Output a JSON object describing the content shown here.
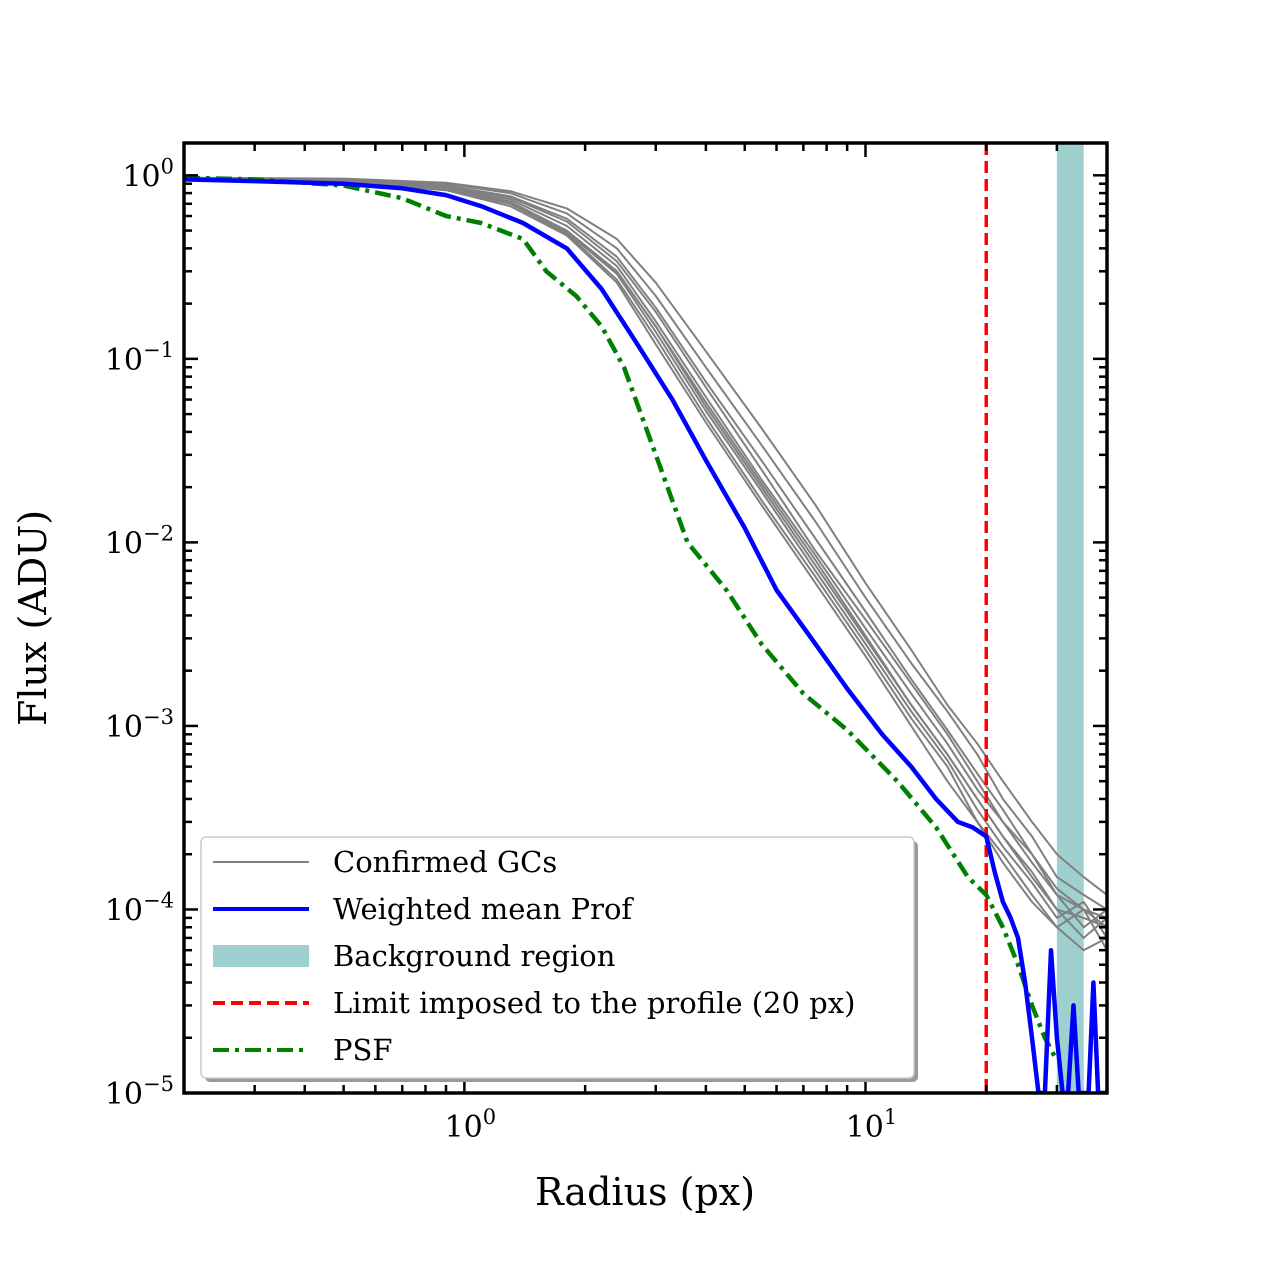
{
  "chart_data": {
    "type": "line",
    "title": "",
    "xlabel": "Radius (px)",
    "ylabel": "Flux (ADU)",
    "xscale": "log",
    "yscale": "log",
    "xlim": [
      0.2,
      40
    ],
    "ylim": [
      1e-05,
      1.5
    ],
    "x_ticks": [
      {
        "value": 1,
        "base": "10",
        "exp": "0"
      },
      {
        "value": 10,
        "base": "10",
        "exp": "1"
      }
    ],
    "y_ticks": [
      {
        "value": 1,
        "base": "10",
        "exp": "0"
      },
      {
        "value": 0.1,
        "base": "10",
        "exp": "−1"
      },
      {
        "value": 0.01,
        "base": "10",
        "exp": "−2"
      },
      {
        "value": 0.001,
        "base": "10",
        "exp": "−3"
      },
      {
        "value": 0.0001,
        "base": "10",
        "exp": "−4"
      },
      {
        "value": 1e-05,
        "base": "10",
        "exp": "−5"
      }
    ],
    "background_region": {
      "x_start": 30,
      "x_end": 35,
      "color": "#9fd0d0"
    },
    "limit_line": {
      "x": 20,
      "color": "#ff0000"
    },
    "series": [
      {
        "name": "Weighted mean Prof",
        "color": "#0000ff",
        "style": "solid",
        "width": 4.5,
        "x": [
          0.2,
          0.3,
          0.5,
          0.7,
          0.9,
          1.1,
          1.4,
          1.8,
          2.2,
          2.7,
          3.3,
          4.0,
          5.0,
          6.0,
          7.5,
          9.0,
          11.0,
          13.0,
          15.0,
          17.0,
          18.5,
          20.0,
          21.0,
          22.0,
          23.0,
          24.0,
          25.0,
          26.0,
          27.0,
          28.0,
          29.0,
          30.0,
          31.0,
          32.0,
          33.0,
          34.0,
          35.0,
          36.0,
          37.0,
          38.0,
          39.0,
          40.0
        ],
        "y": [
          0.95,
          0.93,
          0.9,
          0.85,
          0.78,
          0.68,
          0.55,
          0.4,
          0.24,
          0.12,
          0.06,
          0.028,
          0.012,
          0.0055,
          0.0028,
          0.0016,
          0.0009,
          0.0006,
          0.0004,
          0.0003,
          0.00028,
          0.00025,
          0.00016,
          0.00011,
          9e-05,
          7e-05,
          4e-05,
          2e-05,
          1e-05,
          1e-05,
          6e-05,
          2e-05,
          1e-05,
          1e-05,
          3e-05,
          1e-05,
          1e-05,
          1e-05,
          4e-05,
          1e-05,
          1e-05,
          1e-05
        ]
      },
      {
        "name": "PSF",
        "color": "#008000",
        "style": "dashdot",
        "width": 4.5,
        "x": [
          0.2,
          0.3,
          0.5,
          0.7,
          0.9,
          1.1,
          1.4,
          1.6,
          1.9,
          2.2,
          2.5,
          3.0,
          3.6,
          4.5,
          5.5,
          7.0,
          9.0,
          12.0,
          15.0,
          18.0,
          20.0,
          22.0,
          24.0,
          26.0,
          28.0,
          30.0
        ],
        "y": [
          0.97,
          0.95,
          0.88,
          0.75,
          0.6,
          0.55,
          0.45,
          0.3,
          0.22,
          0.15,
          0.09,
          0.03,
          0.01,
          0.0055,
          0.0028,
          0.0015,
          0.00095,
          0.0005,
          0.00028,
          0.00015,
          0.00012,
          8e-05,
          5e-05,
          3e-05,
          2e-05,
          1.5e-05
        ]
      },
      {
        "name": "Confirmed GCs",
        "color": "#808080",
        "style": "solid",
        "width": 2,
        "profiles": [
          {
            "x": [
              0.2,
              0.5,
              0.9,
              1.3,
              1.8,
              2.4,
              3.0,
              4.0,
              5.5,
              7.5,
              10,
              13,
              16,
              19,
              22,
              26,
              30,
              35,
              40
            ],
            "y": [
              0.96,
              0.94,
              0.88,
              0.76,
              0.56,
              0.34,
              0.18,
              0.07,
              0.025,
              0.009,
              0.0038,
              0.0017,
              0.0009,
              0.0005,
              0.0003,
              0.0002,
              0.00012,
              0.0001,
              8e-05
            ]
          },
          {
            "x": [
              0.2,
              0.5,
              0.9,
              1.3,
              1.8,
              2.4,
              3.0,
              4.0,
              5.5,
              7.5,
              10,
              13,
              16,
              19,
              22,
              26,
              30,
              35,
              40
            ],
            "y": [
              0.96,
              0.93,
              0.86,
              0.72,
              0.5,
              0.3,
              0.15,
              0.055,
              0.02,
              0.0075,
              0.003,
              0.0013,
              0.0007,
              0.0004,
              0.00025,
              0.00015,
              0.0001,
              7e-05,
              9e-05
            ]
          },
          {
            "x": [
              0.2,
              0.5,
              0.9,
              1.3,
              1.8,
              2.4,
              3.0,
              4.0,
              5.5,
              7.5,
              10,
              13,
              16,
              19,
              22,
              26,
              30,
              35,
              40
            ],
            "y": [
              0.95,
              0.92,
              0.84,
              0.7,
              0.48,
              0.27,
              0.13,
              0.048,
              0.017,
              0.0065,
              0.0026,
              0.0011,
              0.0006,
              0.0003,
              0.0002,
              0.00012,
              8e-05,
              0.0001,
              6e-05
            ]
          },
          {
            "x": [
              0.2,
              0.5,
              0.9,
              1.3,
              1.8,
              2.4,
              3.0,
              4.0,
              5.5,
              7.5,
              10,
              13,
              16,
              19,
              22,
              26,
              30,
              35,
              40
            ],
            "y": [
              0.97,
              0.95,
              0.9,
              0.8,
              0.62,
              0.4,
              0.22,
              0.09,
              0.034,
              0.013,
              0.005,
              0.0022,
              0.0012,
              0.0007,
              0.0004,
              0.00025,
              0.00015,
              0.00012,
              0.0001
            ]
          },
          {
            "x": [
              0.2,
              0.5,
              0.9,
              1.3,
              1.8,
              2.4,
              3.0,
              4.0,
              5.5,
              7.5,
              10,
              13,
              16,
              19,
              22,
              26,
              30,
              35,
              40
            ],
            "y": [
              0.96,
              0.94,
              0.87,
              0.74,
              0.53,
              0.32,
              0.16,
              0.062,
              0.022,
              0.0085,
              0.0034,
              0.0015,
              0.0008,
              0.00045,
              0.0003,
              0.00018,
              0.00012,
              8e-05,
              0.0001
            ]
          },
          {
            "x": [
              0.2,
              0.5,
              0.9,
              1.3,
              1.8,
              2.4,
              3.0,
              4.0,
              5.5,
              7.5,
              10,
              13,
              16,
              19,
              22,
              26,
              30,
              35,
              40
            ],
            "y": [
              0.95,
              0.93,
              0.85,
              0.71,
              0.49,
              0.29,
              0.14,
              0.052,
              0.019,
              0.007,
              0.0028,
              0.0012,
              0.00065,
              0.00035,
              0.00022,
              0.00014,
              9e-05,
              0.00011,
              7e-05
            ]
          },
          {
            "x": [
              0.2,
              0.5,
              0.9,
              1.3,
              1.8,
              2.4,
              3.0,
              4.0,
              5.5,
              7.5,
              10,
              13,
              16,
              19,
              22,
              26,
              30,
              35,
              40
            ],
            "y": [
              0.97,
              0.96,
              0.91,
              0.82,
              0.66,
              0.45,
              0.26,
              0.11,
              0.042,
              0.016,
              0.006,
              0.0026,
              0.0013,
              0.0008,
              0.0005,
              0.0003,
              0.0002,
              0.00015,
              0.00012
            ]
          },
          {
            "x": [
              0.2,
              0.5,
              0.9,
              1.3,
              1.8,
              2.4,
              3.0,
              4.0,
              5.5,
              7.5,
              10,
              13,
              16,
              19,
              22,
              26,
              30,
              35,
              40
            ],
            "y": [
              0.96,
              0.93,
              0.85,
              0.71,
              0.5,
              0.3,
              0.15,
              0.058,
              0.021,
              0.008,
              0.0031,
              0.0013,
              0.0007,
              0.0004,
              0.00025,
              0.00016,
              0.0001,
              9e-05,
              8e-05
            ]
          },
          {
            "x": [
              0.2,
              0.5,
              0.9,
              1.3,
              1.8,
              2.4,
              3.0,
              4.0,
              5.5,
              7.5,
              10,
              13,
              16,
              19,
              22,
              26,
              30,
              35,
              40
            ],
            "y": [
              0.95,
              0.92,
              0.83,
              0.68,
              0.47,
              0.26,
              0.12,
              0.045,
              0.016,
              0.006,
              0.0024,
              0.001,
              0.0005,
              0.0003,
              0.00018,
              0.00011,
              8e-05,
              6e-05,
              7e-05
            ]
          },
          {
            "x": [
              0.2,
              0.5,
              0.9,
              1.3,
              1.8,
              2.4,
              3.0,
              4.0,
              5.5,
              7.5,
              10,
              13,
              16,
              19,
              22,
              26,
              30,
              35,
              40
            ],
            "y": [
              0.96,
              0.94,
              0.88,
              0.77,
              0.58,
              0.36,
              0.19,
              0.075,
              0.028,
              0.0105,
              0.0042,
              0.0018,
              0.00095,
              0.00055,
              0.00035,
              0.0002,
              0.00013,
              0.0001,
              9e-05
            ]
          }
        ]
      }
    ],
    "legend": {
      "position": "lower-left",
      "entries": [
        {
          "label": "Confirmed GCs",
          "color": "#808080",
          "kind": "line-solid-thin"
        },
        {
          "label": "Weighted mean Prof",
          "color": "#0000ff",
          "kind": "line-solid"
        },
        {
          "label": "Background region",
          "color": "#9fd0d0",
          "kind": "patch"
        },
        {
          "label": "Limit imposed to the profile (20 px)",
          "color": "#ff0000",
          "kind": "line-dashed"
        },
        {
          "label": "PSF",
          "color": "#008000",
          "kind": "line-dashdot"
        }
      ]
    }
  }
}
